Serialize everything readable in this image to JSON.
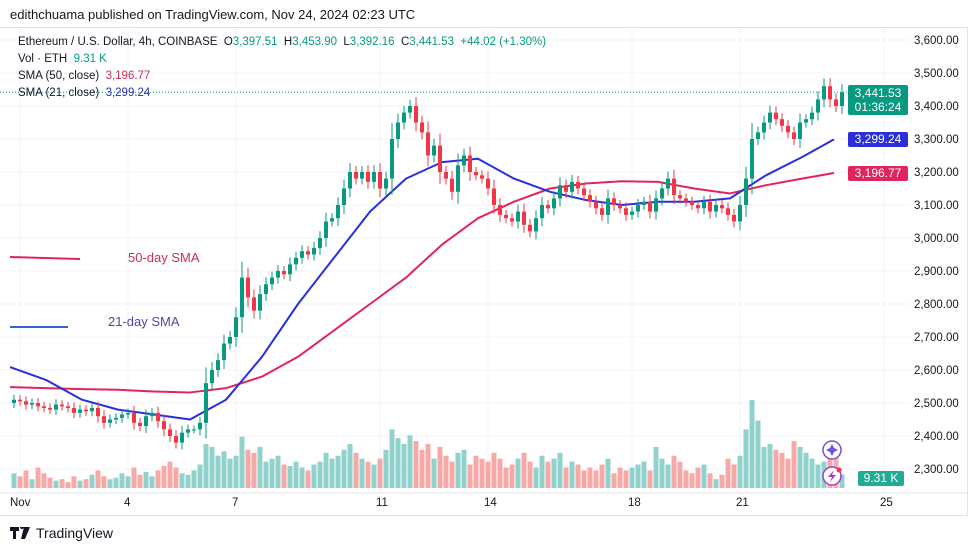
{
  "published": "edithchuama published on TradingView.com, Nov 24, 2024 02:23 UTC",
  "legend": {
    "symbol": "Ethereum / U.S. Dollar, 4h, COINBASE",
    "open_label": "O",
    "open": "3,397.51",
    "high_label": "H",
    "high": "3,453.90",
    "low_label": "L",
    "low": "3,392.16",
    "close_label": "C",
    "close": "3,441.53",
    "change": "+44.02 (+1.30%)",
    "vol_label": "Vol · ETH",
    "vol": "9.31 K",
    "sma50_label": "SMA (50, close)",
    "sma50": "3,196.77",
    "sma21_label": "SMA (21, close)",
    "sma21": "3,299.24"
  },
  "annotations": {
    "sma50": "50-day SMA",
    "sma21": "21-day SMA"
  },
  "price_tags": {
    "last": "3,441.53",
    "countdown": "01:36:24",
    "sma21": "3,299.24",
    "sma50": "3,196.77",
    "volume": "9.31 K"
  },
  "colors": {
    "up": "#089981",
    "down": "#f23645",
    "sma21": "#2a2fd8",
    "sma50": "#e0245e",
    "vol_up": "#92d2cc",
    "vol_down": "#f7a9a7"
  },
  "footer": {
    "brand": "TradingView"
  },
  "chart_data": {
    "type": "candlestick",
    "interval": "4h",
    "y_ticks": [
      "3,600.00",
      "3,500.00",
      "3,400.00",
      "3,300.00",
      "3,200.00",
      "3,100.00",
      "3,000.00",
      "2,900.00",
      "2,800.00",
      "2,700.00",
      "2,600.00",
      "2,500.00",
      "2,400.00",
      "2,300.00"
    ],
    "ylim": [
      2300,
      3600
    ],
    "x_ticks": [
      {
        "label": "Nov",
        "day": 1
      },
      {
        "label": "4",
        "day": 4
      },
      {
        "label": "7",
        "day": 7
      },
      {
        "label": "11",
        "day": 11
      },
      {
        "label": "14",
        "day": 14
      },
      {
        "label": "18",
        "day": 18
      },
      {
        "label": "21",
        "day": 21
      },
      {
        "label": "25",
        "day": 25
      }
    ],
    "first_open": 2500,
    "closes": [
      2510,
      2505,
      2495,
      2500,
      2490,
      2485,
      2480,
      2495,
      2490,
      2485,
      2470,
      2480,
      2475,
      2485,
      2460,
      2440,
      2450,
      2455,
      2465,
      2470,
      2440,
      2430,
      2460,
      2470,
      2445,
      2420,
      2400,
      2380,
      2410,
      2420,
      2420,
      2440,
      2560,
      2600,
      2630,
      2680,
      2700,
      2760,
      2880,
      2820,
      2780,
      2830,
      2860,
      2880,
      2900,
      2890,
      2920,
      2940,
      2960,
      2950,
      2970,
      3000,
      3050,
      3060,
      3100,
      3150,
      3200,
      3180,
      3200,
      3170,
      3200,
      3150,
      3180,
      3300,
      3350,
      3380,
      3400,
      3350,
      3320,
      3250,
      3280,
      3200,
      3180,
      3140,
      3220,
      3250,
      3200,
      3190,
      3180,
      3150,
      3100,
      3070,
      3060,
      3050,
      3080,
      3040,
      3020,
      3060,
      3100,
      3090,
      3120,
      3160,
      3140,
      3170,
      3150,
      3130,
      3110,
      3090,
      3070,
      3120,
      3100,
      3090,
      3070,
      3080,
      3100,
      3110,
      3080,
      3120,
      3150,
      3180,
      3130,
      3120,
      3110,
      3100,
      3090,
      3110,
      3080,
      3100,
      3090,
      3070,
      3050,
      3100,
      3180,
      3300,
      3320,
      3350,
      3380,
      3360,
      3340,
      3320,
      3300,
      3350,
      3360,
      3380,
      3420,
      3460,
      3420,
      3400,
      3441.53
    ],
    "volumes_k": [
      10,
      8,
      12,
      6,
      14,
      10,
      7,
      5,
      6,
      4,
      8,
      5,
      6,
      9,
      12,
      8,
      6,
      7,
      10,
      8,
      14,
      9,
      11,
      8,
      12,
      15,
      18,
      14,
      10,
      9,
      12,
      16,
      30,
      28,
      22,
      25,
      20,
      22,
      35,
      26,
      24,
      28,
      18,
      20,
      22,
      16,
      15,
      18,
      14,
      12,
      16,
      18,
      24,
      20,
      22,
      26,
      30,
      24,
      20,
      18,
      16,
      20,
      26,
      40,
      34,
      30,
      36,
      32,
      26,
      30,
      20,
      28,
      22,
      18,
      24,
      26,
      16,
      22,
      20,
      18,
      24,
      20,
      14,
      16,
      20,
      24,
      18,
      14,
      22,
      18,
      20,
      24,
      14,
      18,
      16,
      12,
      14,
      12,
      16,
      20,
      10,
      14,
      12,
      14,
      16,
      18,
      12,
      28,
      20,
      16,
      22,
      18,
      12,
      10,
      14,
      16,
      10,
      6,
      9,
      20,
      16,
      22,
      40,
      60,
      46,
      28,
      30,
      26,
      24,
      20,
      32,
      28,
      24,
      20,
      16,
      18,
      28,
      22,
      9.31
    ],
    "sma21_daily": [
      2609,
      2570,
      2510,
      2480,
      2465,
      2450,
      2510,
      2640,
      2800,
      2940,
      3080,
      3180,
      3230,
      3240,
      3180,
      3140,
      3115,
      3100,
      3110,
      3110,
      3120,
      3190,
      3245,
      3299
    ],
    "sma50_daily": [
      2548,
      2545,
      2542,
      2540,
      2535,
      2532,
      2545,
      2580,
      2640,
      2720,
      2800,
      2880,
      2980,
      3060,
      3110,
      3150,
      3165,
      3172,
      3170,
      3150,
      3135,
      3160,
      3180,
      3197
    ],
    "last_price": 3441.53
  }
}
